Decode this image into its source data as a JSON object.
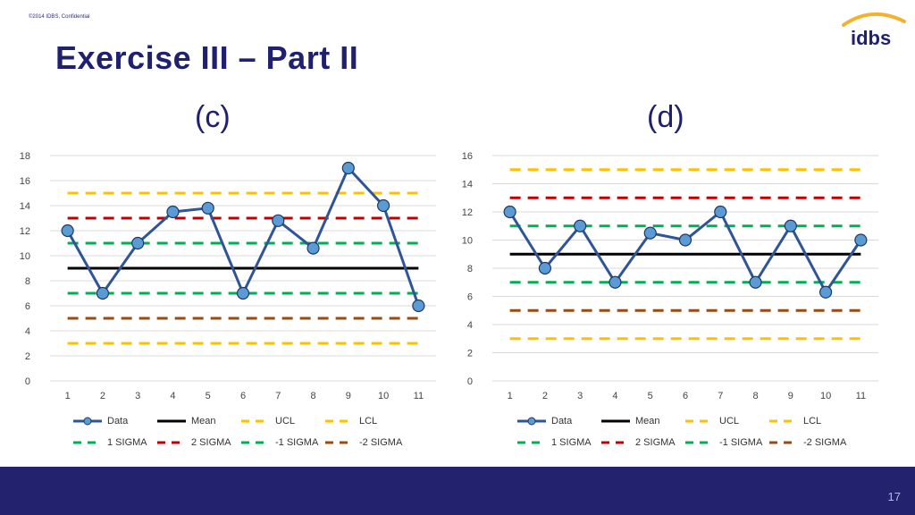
{
  "header": {
    "confidential": "©2014 IDBS, Confidential",
    "title": "Exercise III – Part II",
    "logo_text": "idbs"
  },
  "colors": {
    "data": "#2f5597",
    "marker": "#5b9bd5",
    "mean": "#000000",
    "ucl": "#ffc000",
    "one_sigma": "#00b050",
    "two_sigma": "#c00000",
    "neg_two_sigma": "#9c4a12",
    "title": "#1f2170",
    "footer": "#22226e"
  },
  "legend": {
    "data": "Data",
    "mean": "Mean",
    "ucl": "UCL",
    "lcl": "LCL",
    "one_sigma": "1 SIGMA",
    "two_sigma": "2 SIGMA",
    "neg_one_sigma": "-1 SIGMA",
    "neg_two_sigma": "-2 SIGMA"
  },
  "chart_data": [
    {
      "type": "line",
      "label": "(c)",
      "x": [
        1,
        2,
        3,
        4,
        5,
        6,
        7,
        8,
        9,
        10,
        11
      ],
      "ylim": [
        0,
        18
      ],
      "yticks": [
        0,
        2,
        4,
        6,
        8,
        10,
        12,
        14,
        16,
        18
      ],
      "series": [
        {
          "name": "Data",
          "values": [
            12,
            7,
            11,
            13.5,
            13.8,
            7,
            12.8,
            10.6,
            17,
            14,
            6
          ]
        },
        {
          "name": "Mean",
          "values": [
            9,
            9,
            9,
            9,
            9,
            9,
            9,
            9,
            9,
            9,
            9
          ]
        },
        {
          "name": "UCL",
          "values": [
            15,
            15,
            15,
            15,
            15,
            15,
            15,
            15,
            15,
            15,
            15
          ]
        },
        {
          "name": "LCL",
          "values": [
            3,
            3,
            3,
            3,
            3,
            3,
            3,
            3,
            3,
            3,
            3
          ]
        },
        {
          "name": "1 SIGMA",
          "values": [
            11,
            11,
            11,
            11,
            11,
            11,
            11,
            11,
            11,
            11,
            11
          ]
        },
        {
          "name": "2 SIGMA",
          "values": [
            13,
            13,
            13,
            13,
            13,
            13,
            13,
            13,
            13,
            13,
            13
          ]
        },
        {
          "name": "-1 SIGMA",
          "values": [
            7,
            7,
            7,
            7,
            7,
            7,
            7,
            7,
            7,
            7,
            7
          ]
        },
        {
          "name": "-2 SIGMA",
          "values": [
            5,
            5,
            5,
            5,
            5,
            5,
            5,
            5,
            5,
            5,
            5
          ]
        }
      ],
      "grid": true,
      "legend_position": "bottom"
    },
    {
      "type": "line",
      "label": "(d)",
      "x": [
        1,
        2,
        3,
        4,
        5,
        6,
        7,
        8,
        9,
        10,
        11
      ],
      "ylim": [
        0,
        16
      ],
      "yticks": [
        0,
        2,
        4,
        6,
        8,
        10,
        12,
        14,
        16
      ],
      "series": [
        {
          "name": "Data",
          "values": [
            12,
            8,
            11,
            7,
            10.5,
            10,
            12,
            7,
            11,
            6.3,
            10
          ]
        },
        {
          "name": "Mean",
          "values": [
            9,
            9,
            9,
            9,
            9,
            9,
            9,
            9,
            9,
            9,
            9
          ]
        },
        {
          "name": "UCL",
          "values": [
            15,
            15,
            15,
            15,
            15,
            15,
            15,
            15,
            15,
            15,
            15
          ]
        },
        {
          "name": "LCL",
          "values": [
            3,
            3,
            3,
            3,
            3,
            3,
            3,
            3,
            3,
            3,
            3
          ]
        },
        {
          "name": "1 SIGMA",
          "values": [
            11,
            11,
            11,
            11,
            11,
            11,
            11,
            11,
            11,
            11,
            11
          ]
        },
        {
          "name": "2 SIGMA",
          "values": [
            13,
            13,
            13,
            13,
            13,
            13,
            13,
            13,
            13,
            13,
            13
          ]
        },
        {
          "name": "-1 SIGMA",
          "values": [
            7,
            7,
            7,
            7,
            7,
            7,
            7,
            7,
            7,
            7,
            7
          ]
        },
        {
          "name": "-2 SIGMA",
          "values": [
            5,
            5,
            5,
            5,
            5,
            5,
            5,
            5,
            5,
            5,
            5
          ]
        }
      ],
      "grid": true,
      "legend_position": "bottom"
    }
  ],
  "footer": {
    "page_number": "17"
  }
}
